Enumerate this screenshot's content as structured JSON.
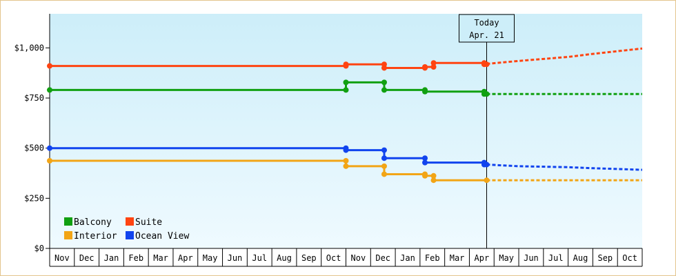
{
  "chart_data": {
    "type": "line",
    "title": "",
    "xlabel": "",
    "ylabel": "",
    "ylim": [
      0,
      1170
    ],
    "y_ticks": [
      {
        "value": 0,
        "label": "$0"
      },
      {
        "value": 250,
        "label": "$250"
      },
      {
        "value": 500,
        "label": "$500"
      },
      {
        "value": 750,
        "label": "$750"
      },
      {
        "value": 1000,
        "label": "$1,000"
      }
    ],
    "x_ticks": [
      "Nov",
      "Dec",
      "Jan",
      "Feb",
      "Mar",
      "Apr",
      "May",
      "Jun",
      "Jul",
      "Aug",
      "Sep",
      "Oct",
      "Nov",
      "Dec",
      "Jan",
      "Feb",
      "Mar",
      "Apr",
      "May",
      "Jun",
      "Jul",
      "Aug",
      "Sep",
      "Oct"
    ],
    "x_unit": "months from start of first Nov",
    "xlim": [
      0,
      24
    ],
    "today": {
      "line1": "Today",
      "line2": "Apr. 21",
      "x": 17.7
    },
    "grid": "none",
    "background": {
      "top": "#cdeef9",
      "bottom": "#effaff"
    },
    "legend": {
      "placement": "bottom-left"
    },
    "series": [
      {
        "name": "Balcony",
        "color": "#11a011",
        "history": [
          [
            0,
            790
          ],
          [
            12,
            790
          ],
          [
            12,
            828
          ],
          [
            13.55,
            828
          ],
          [
            13.55,
            790
          ],
          [
            15.2,
            790
          ],
          [
            15.2,
            782
          ],
          [
            17.6,
            782
          ],
          [
            17.6,
            770
          ],
          [
            17.7,
            770
          ]
        ],
        "markers": [
          [
            0,
            790
          ],
          [
            12,
            790
          ],
          [
            12,
            828
          ],
          [
            13.55,
            828
          ],
          [
            13.55,
            790
          ],
          [
            15.2,
            790
          ],
          [
            15.2,
            782
          ],
          [
            17.6,
            782
          ],
          [
            17.6,
            770
          ],
          [
            17.7,
            770
          ]
        ],
        "forecast": [
          [
            17.7,
            770
          ],
          [
            24,
            770
          ]
        ]
      },
      {
        "name": "Suite",
        "color": "#ff4411",
        "history": [
          [
            0,
            910
          ],
          [
            12,
            910
          ],
          [
            12,
            918
          ],
          [
            13.55,
            918
          ],
          [
            13.55,
            900
          ],
          [
            15.2,
            900
          ],
          [
            15.2,
            905
          ],
          [
            15.55,
            905
          ],
          [
            15.55,
            925
          ],
          [
            17.6,
            925
          ],
          [
            17.6,
            918
          ],
          [
            17.7,
            918
          ]
        ],
        "markers": [
          [
            0,
            910
          ],
          [
            12,
            910
          ],
          [
            12,
            918
          ],
          [
            13.55,
            918
          ],
          [
            13.55,
            900
          ],
          [
            15.2,
            900
          ],
          [
            15.2,
            905
          ],
          [
            15.55,
            905
          ],
          [
            15.55,
            925
          ],
          [
            17.6,
            925
          ],
          [
            17.6,
            918
          ],
          [
            17.7,
            918
          ]
        ],
        "forecast": [
          [
            17.7,
            920
          ],
          [
            19,
            935
          ],
          [
            21,
            955
          ],
          [
            22,
            970
          ],
          [
            24,
            997
          ]
        ]
      },
      {
        "name": "Interior",
        "color": "#f2a516",
        "history": [
          [
            0,
            437
          ],
          [
            12,
            437
          ],
          [
            12,
            410
          ],
          [
            13.55,
            410
          ],
          [
            13.55,
            370
          ],
          [
            15.2,
            370
          ],
          [
            15.2,
            362
          ],
          [
            15.55,
            362
          ],
          [
            15.55,
            340
          ],
          [
            17.7,
            340
          ]
        ],
        "markers": [
          [
            0,
            437
          ],
          [
            12,
            437
          ],
          [
            12,
            410
          ],
          [
            13.55,
            410
          ],
          [
            13.55,
            370
          ],
          [
            15.2,
            370
          ],
          [
            15.2,
            362
          ],
          [
            15.55,
            362
          ],
          [
            15.55,
            340
          ],
          [
            17.7,
            340
          ]
        ],
        "forecast": [
          [
            17.7,
            340
          ],
          [
            24,
            340
          ]
        ]
      },
      {
        "name": "Ocean View",
        "color": "#1144ee",
        "history": [
          [
            0,
            500
          ],
          [
            12,
            500
          ],
          [
            12,
            490
          ],
          [
            13.55,
            490
          ],
          [
            13.55,
            450
          ],
          [
            15.2,
            450
          ],
          [
            15.2,
            428
          ],
          [
            17.6,
            428
          ],
          [
            17.6,
            418
          ],
          [
            17.7,
            418
          ]
        ],
        "markers": [
          [
            0,
            500
          ],
          [
            12,
            500
          ],
          [
            12,
            490
          ],
          [
            13.55,
            490
          ],
          [
            13.55,
            450
          ],
          [
            15.2,
            450
          ],
          [
            15.2,
            428
          ],
          [
            17.6,
            428
          ],
          [
            17.6,
            418
          ],
          [
            17.7,
            418
          ]
        ],
        "forecast": [
          [
            17.7,
            418
          ],
          [
            19,
            410
          ],
          [
            21,
            405
          ],
          [
            22,
            400
          ],
          [
            24,
            392
          ]
        ]
      }
    ]
  }
}
